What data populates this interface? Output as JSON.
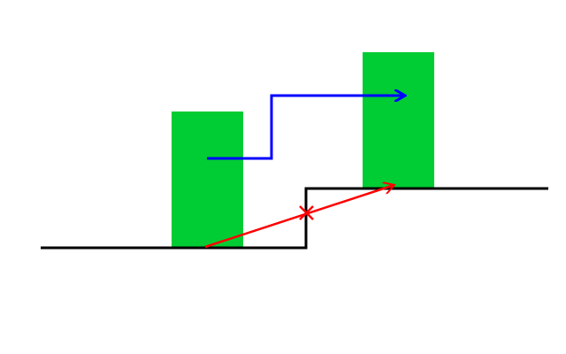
{
  "diagram": {
    "description_elements": {
      "ground_line": "black-step-line",
      "lower_block": "green-block",
      "upper_block": "green-block",
      "blue_path": "stepped-arrow",
      "red_path": "diagonal-arrow-with-cross"
    },
    "colors": {
      "background": "#ffffff",
      "ground": "#000000",
      "block": "#00cc33",
      "blue_path": "#0000ff",
      "red_path": "#ff0000"
    }
  }
}
